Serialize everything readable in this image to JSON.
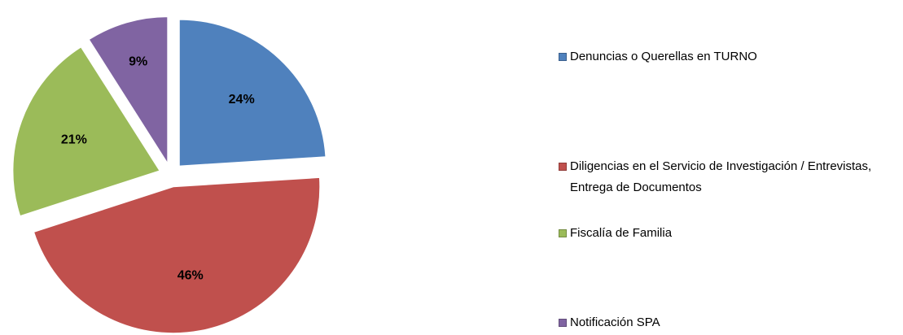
{
  "chart_data": {
    "type": "pie",
    "categories": [
      "Denuncias o Querellas en TURNO",
      "Diligencias en el Servicio de Investigación / Entrevistas, Entrega de Documentos",
      "Fiscalía de Familia",
      "Notificación SPA"
    ],
    "values": [
      24,
      46,
      21,
      9
    ],
    "value_labels": [
      "24%",
      "46%",
      "21%",
      "9%"
    ],
    "colors": [
      "#4f81bd",
      "#c0504d",
      "#9bbb59",
      "#8064a2"
    ],
    "legend": "right"
  }
}
